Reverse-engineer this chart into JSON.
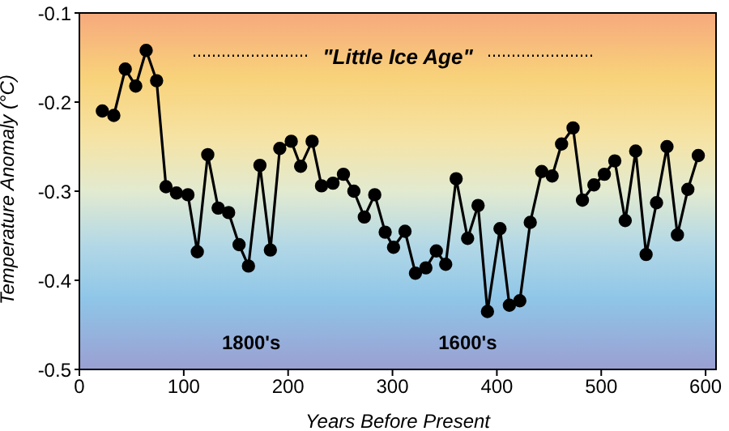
{
  "chart_data": {
    "type": "line",
    "xlabel": "Years Before Present",
    "ylabel": "Temperature Anomaly (°C)",
    "xlim": [
      0,
      610
    ],
    "xticks": [
      0,
      100,
      200,
      300,
      400,
      500,
      600
    ],
    "ylim": [
      -0.5,
      -0.1
    ],
    "yticks": [
      -0.1,
      -0.2,
      -0.3,
      -0.4,
      -0.5
    ],
    "grid": false,
    "legend": false,
    "marker": "circle",
    "line_style": "solid",
    "annotations": [
      "\"Little Ice Age\"",
      "1800's",
      "1600's"
    ],
    "series": [
      {
        "color": "#000000",
        "x": [
          22,
          33,
          44,
          54,
          64,
          74,
          83,
          93,
          104,
          113,
          123,
          133,
          143,
          153,
          162,
          173,
          183,
          192,
          203,
          212,
          223,
          232,
          243,
          253,
          263,
          273,
          283,
          293,
          301,
          312,
          322,
          332,
          342,
          351,
          361,
          372,
          382,
          391,
          403,
          412,
          422,
          432,
          443,
          453,
          462,
          473,
          482,
          493,
          503,
          513,
          523,
          533,
          543,
          553,
          563,
          573,
          583,
          593
        ],
        "values": [
          -0.21,
          -0.215,
          -0.163,
          -0.182,
          -0.142,
          -0.176,
          -0.295,
          -0.302,
          -0.304,
          -0.368,
          -0.259,
          -0.319,
          -0.324,
          -0.36,
          -0.384,
          -0.271,
          -0.366,
          -0.252,
          -0.244,
          -0.272,
          -0.244,
          -0.294,
          -0.291,
          -0.281,
          -0.3,
          -0.329,
          -0.304,
          -0.346,
          -0.363,
          -0.345,
          -0.392,
          -0.386,
          -0.367,
          -0.382,
          -0.286,
          -0.353,
          -0.316,
          -0.435,
          -0.342,
          -0.428,
          -0.423,
          -0.335,
          -0.278,
          -0.283,
          -0.247,
          -0.229,
          -0.31,
          -0.293,
          -0.281,
          -0.266,
          -0.333,
          -0.255,
          -0.371,
          -0.313,
          -0.25,
          -0.349,
          -0.298,
          -0.26
        ]
      }
    ]
  }
}
